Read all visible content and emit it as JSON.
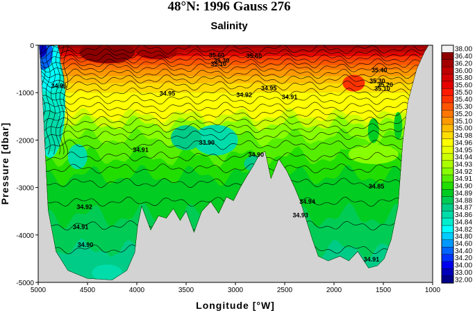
{
  "chart_data": {
    "type": "heatmap",
    "title": "48°N: 1996 Gauss 276",
    "subtitle": "Salinity",
    "xlabel": "Longitude [°W]",
    "ylabel": "Pressure [dbar]",
    "xlim": [
      5000,
      1000
    ],
    "ylim": [
      0,
      -5000
    ],
    "x_ticks": [
      "5000",
      "4500",
      "4000",
      "3500",
      "3000",
      "2500",
      "2000",
      "1500",
      "1000"
    ],
    "y_ticks": [
      "0",
      "-1000",
      "-2000",
      "-3000",
      "-4000",
      "-5000"
    ],
    "colorbar_levels": [
      "38.00",
      "36.40",
      "36.20",
      "36.00",
      "35.80",
      "35.60",
      "35.50",
      "35.40",
      "35.30",
      "35.20",
      "35.10",
      "35.00",
      "34.98",
      "34.96",
      "34.95",
      "34.94",
      "34.93",
      "34.92",
      "34.91",
      "34.90",
      "34.89",
      "34.88",
      "34.87",
      "34.86",
      "34.84",
      "34.82",
      "34.80",
      "34.60",
      "34.40",
      "34.20",
      "34.00",
      "33.00",
      "32.00"
    ],
    "colorbar_colors": [
      "#f2f2f2",
      "#8b0000",
      "#a50000",
      "#bf0000",
      "#d40000",
      "#e60000",
      "#ff1a00",
      "#ff3300",
      "#ff5500",
      "#ff7700",
      "#ff9900",
      "#ffbb00",
      "#ffdd00",
      "#ffff00",
      "#e8ff00",
      "#ccff00",
      "#aaff00",
      "#88ff00",
      "#55ee00",
      "#22dd00",
      "#00cc22",
      "#00cc55",
      "#00cc88",
      "#00ddaa",
      "#00eecc",
      "#00ffff",
      "#00ccff",
      "#0099ff",
      "#0066ff",
      "#0033ff",
      "#0000ee",
      "#0000bb",
      "#000088"
    ],
    "contour_labels": [
      {
        "text": "35.60",
        "lon": 3270,
        "p": -260
      },
      {
        "text": "35.30",
        "lon": 3220,
        "p": -370
      },
      {
        "text": "35.10",
        "lon": 3250,
        "p": -440
      },
      {
        "text": "35.60",
        "lon": 2890,
        "p": -270
      },
      {
        "text": "35.40",
        "lon": 1620,
        "p": -570
      },
      {
        "text": "34.95",
        "lon": 3770,
        "p": -1060
      },
      {
        "text": "34.92",
        "lon": 2990,
        "p": -1090
      },
      {
        "text": "34.95",
        "lon": 2740,
        "p": -950
      },
      {
        "text": "34.91",
        "lon": 2530,
        "p": -1140
      },
      {
        "text": "35.30",
        "lon": 1640,
        "p": -800
      },
      {
        "text": "35.20",
        "lon": 1560,
        "p": -880
      },
      {
        "text": "35.10",
        "lon": 1590,
        "p": -960
      },
      {
        "text": "34.96",
        "lon": 4870,
        "p": -900
      },
      {
        "text": "34.91",
        "lon": 4040,
        "p": -2250
      },
      {
        "text": "33.90",
        "lon": 3370,
        "p": -2100
      },
      {
        "text": "34.90",
        "lon": 2870,
        "p": -2350
      },
      {
        "text": "34.85",
        "lon": 1650,
        "p": -3020
      },
      {
        "text": "34.94",
        "lon": 2350,
        "p": -3340
      },
      {
        "text": "34.93",
        "lon": 2420,
        "p": -3630
      },
      {
        "text": "34.92",
        "lon": 4610,
        "p": -3450
      },
      {
        "text": "34.91",
        "lon": 4650,
        "p": -3880
      },
      {
        "text": "34.90",
        "lon": 4600,
        "p": -4250
      },
      {
        "text": "34.91",
        "lon": 1700,
        "p": -4560
      }
    ]
  }
}
